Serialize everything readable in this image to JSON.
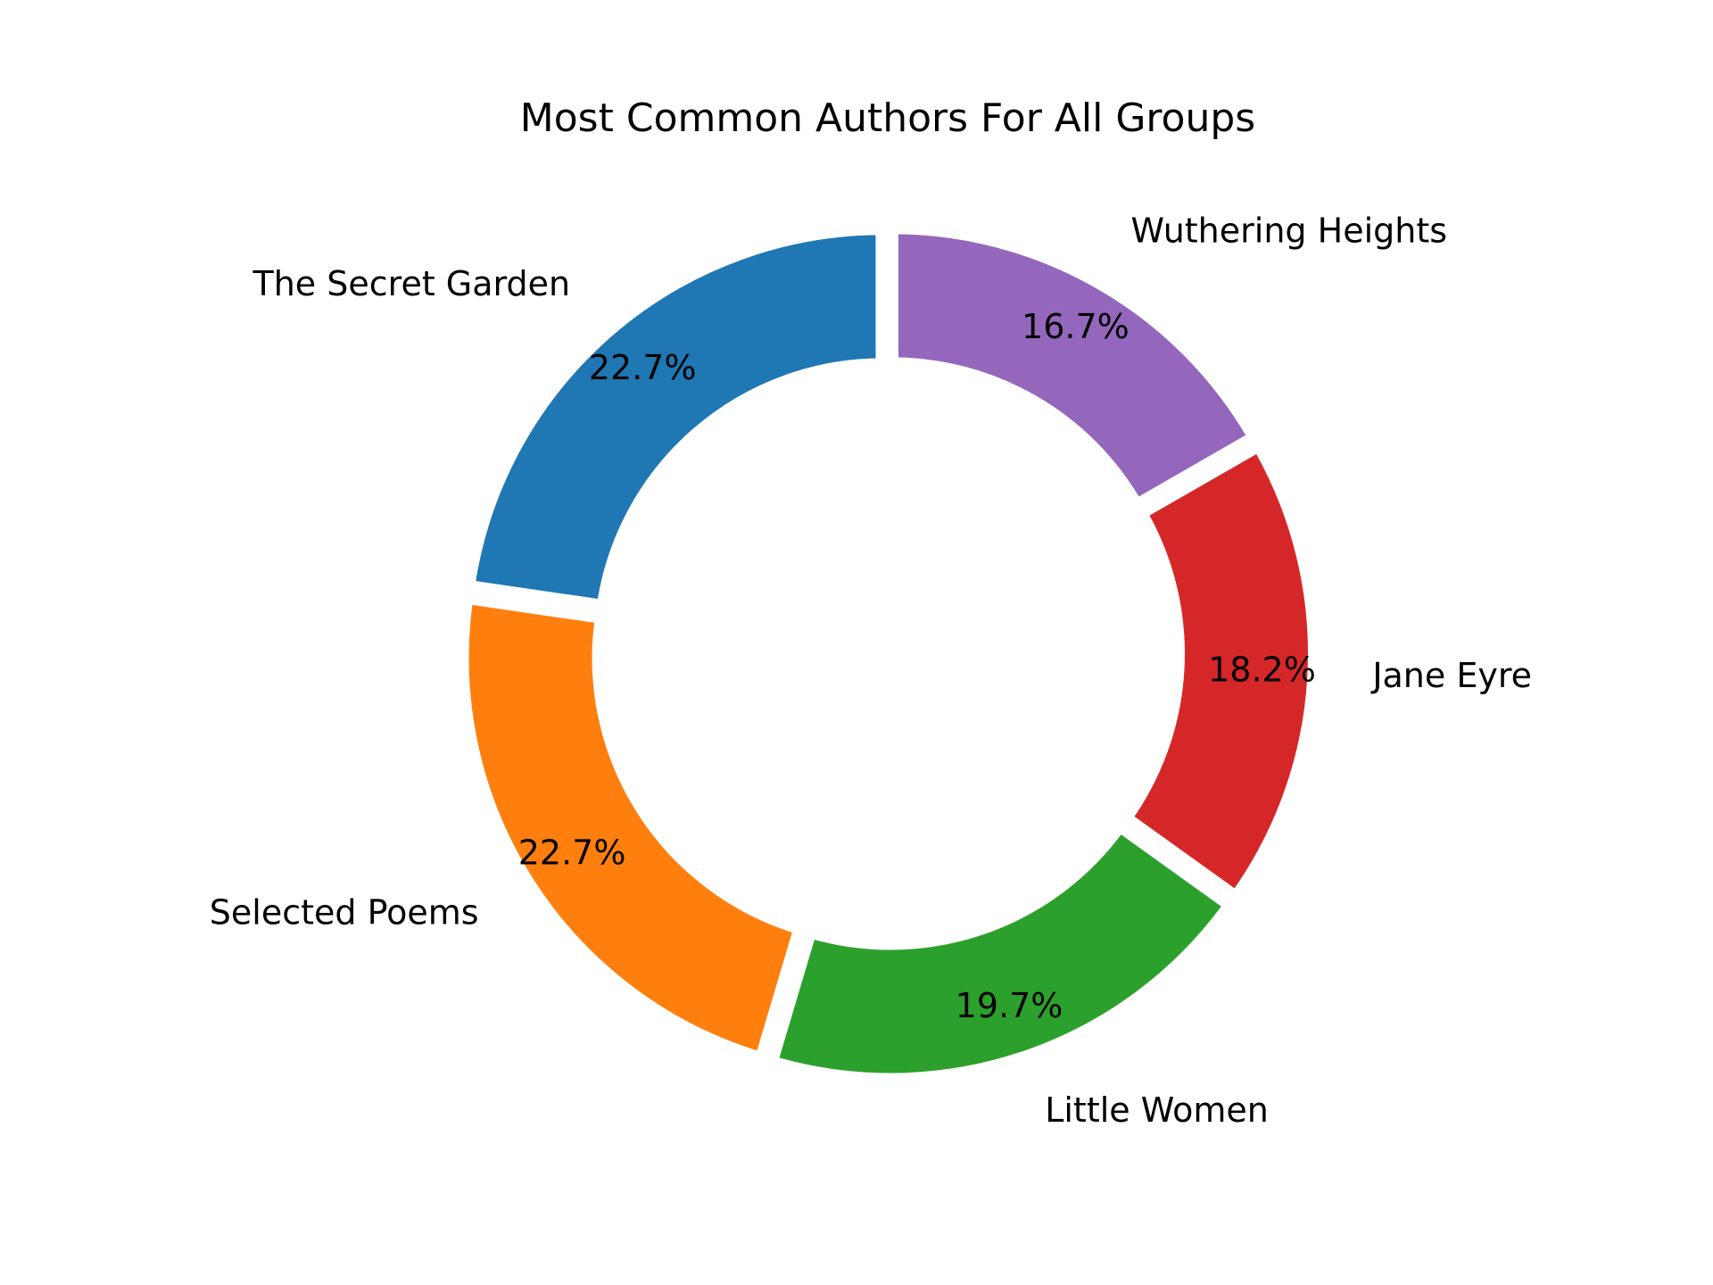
{
  "chart_data": {
    "type": "pie",
    "variant": "donut",
    "title": "Most Common Authors For All Groups",
    "categories": [
      "The Secret Garden",
      "Selected Poems",
      "Little Women",
      "Jane Eyre",
      "Wuthering Heights"
    ],
    "values": [
      22.7,
      22.7,
      19.7,
      18.2,
      16.7
    ],
    "value_labels": [
      "22.7%",
      "22.7%",
      "19.7%",
      "18.2%",
      "16.7%"
    ],
    "colors": [
      "#1f77b4",
      "#ff7f0e",
      "#2ca02c",
      "#d62728",
      "#9467bd"
    ],
    "start_angle_deg": 90,
    "direction": "counterclockwise",
    "legend": "none"
  }
}
